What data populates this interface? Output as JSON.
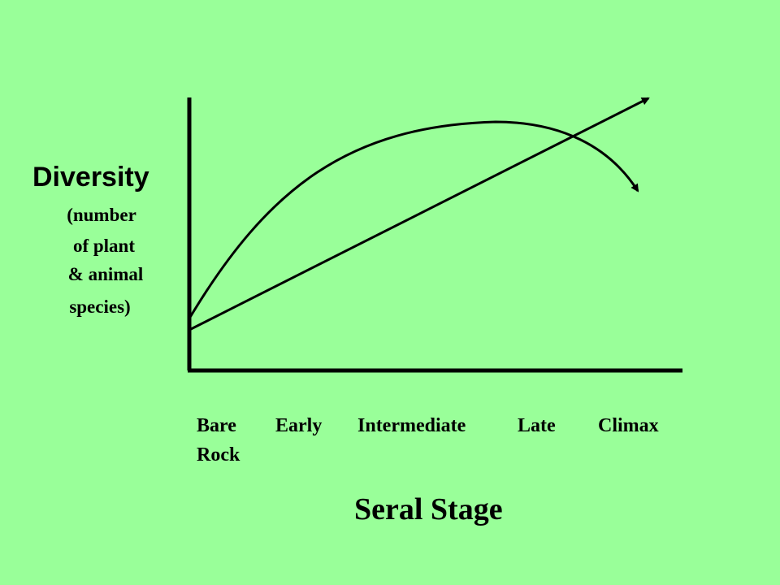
{
  "y_axis": {
    "title": "Diversity",
    "subtitle_lines": [
      "(number",
      "of plant",
      "& animal",
      "species)"
    ]
  },
  "x_axis": {
    "title": "Seral Stage",
    "ticks": [
      "Bare",
      "Early",
      "Intermediate",
      "Late",
      "Climax"
    ],
    "tick_second_line": "Rock"
  },
  "colors": {
    "background": "#99ff99",
    "ink": "#000000"
  }
}
